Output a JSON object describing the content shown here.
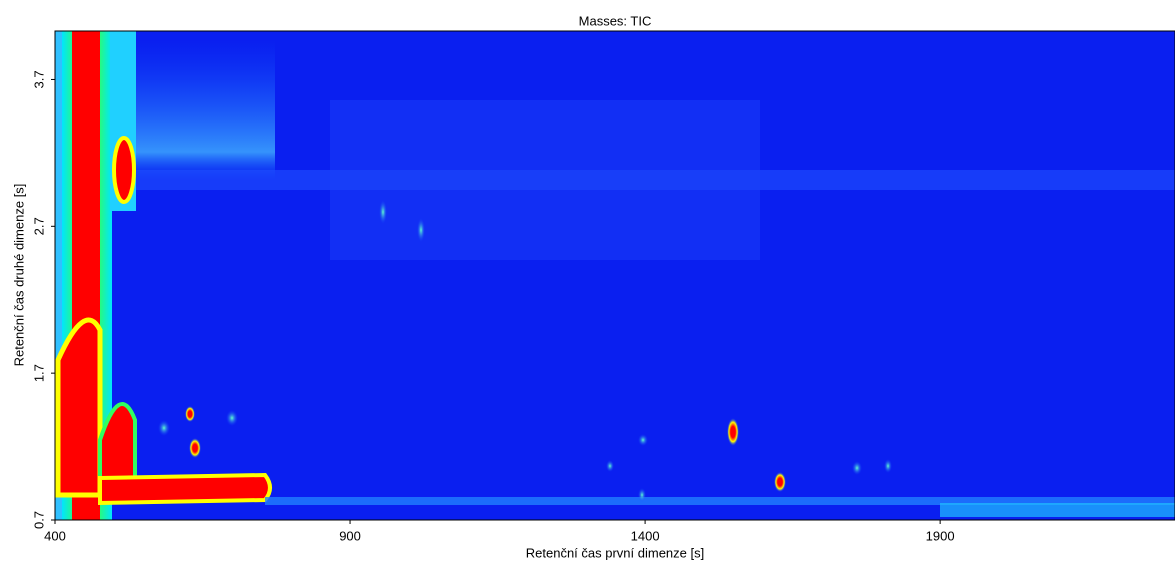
{
  "chart_data": {
    "type": "heatmap",
    "title": "Masses:  TIC",
    "x_label": "Retenční čas první dimenze [s]",
    "y_label": "Retenční čas druhé dimenze [s]",
    "xlim": [
      400,
      2298
    ],
    "xticks": [
      400,
      900,
      1400,
      1900
    ],
    "ylim": [
      0.7,
      4.03
    ],
    "yticks": [
      0.7,
      1.7,
      2.7,
      3.7
    ]
  }
}
